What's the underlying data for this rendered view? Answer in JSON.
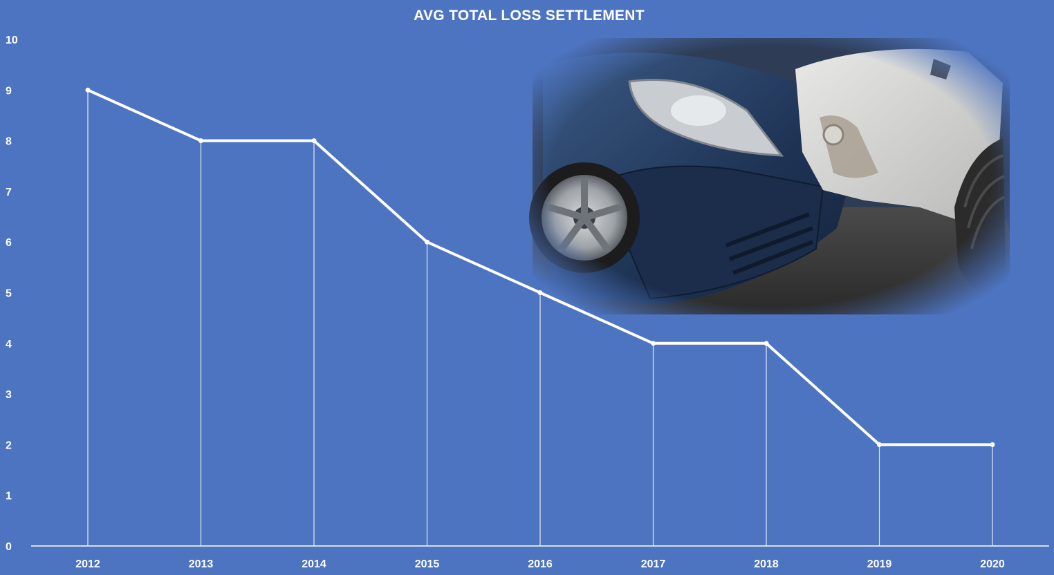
{
  "chart_data": {
    "type": "line",
    "title": "AVG TOTAL LOSS SETTLEMENT",
    "categories": [
      "2012",
      "2013",
      "2014",
      "2015",
      "2016",
      "2017",
      "2018",
      "2019",
      "2020"
    ],
    "series": [
      {
        "values": [
          9,
          8,
          8,
          6,
          5,
          4,
          4,
          2,
          2
        ]
      }
    ],
    "yticks": [
      "0",
      "1",
      "2",
      "3",
      "4",
      "5",
      "6",
      "7",
      "8",
      "9",
      "10"
    ],
    "ylim": [
      0,
      10
    ],
    "drop_lines": true,
    "grid": false,
    "legend": "none",
    "colors": {
      "background": "#4d74c0",
      "line": "#ffffff",
      "axis": "#ffffff"
    }
  },
  "image": {
    "subject": "car-crash-photo"
  }
}
